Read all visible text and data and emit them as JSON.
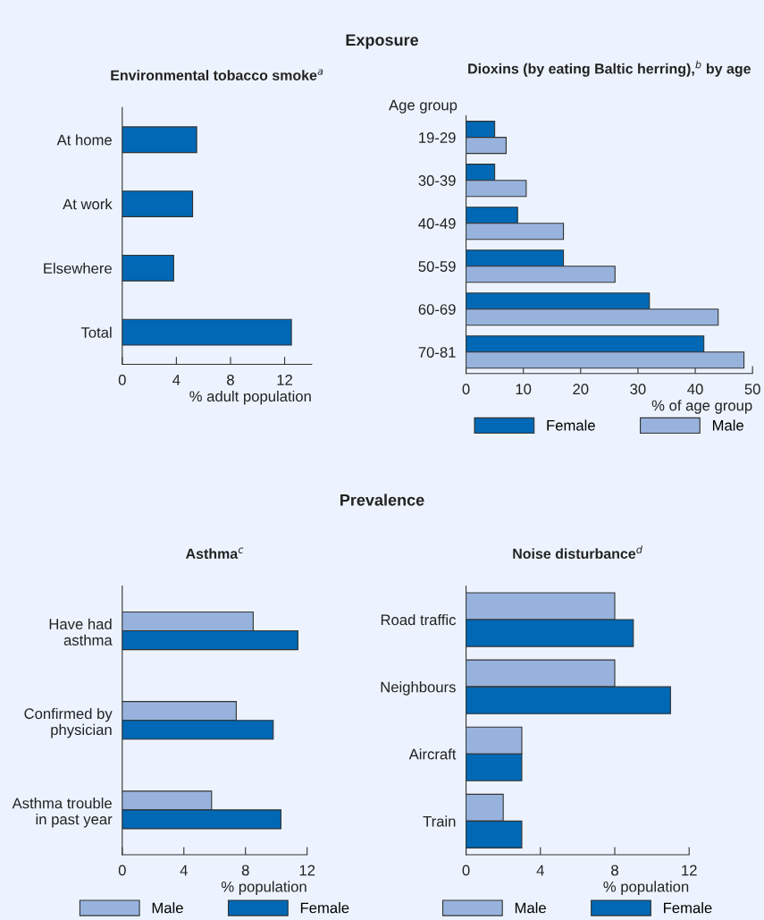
{
  "chart_data": [
    {
      "type": "bar",
      "orientation": "horizontal",
      "title": "Environmental tobacco smoke$^{a}$",
      "annotations": [
        "Exposure"
      ],
      "xlabel": "% adult population",
      "categories": [
        "At home",
        "At work",
        "Elsewhere",
        "Total"
      ],
      "values": [
        5.5,
        5.2,
        3.8,
        12.5
      ],
      "color": "#0068b4",
      "xlim": [
        0,
        14
      ],
      "xticks": [
        0,
        4,
        8,
        12
      ],
      "grid": false
    },
    {
      "type": "bar",
      "orientation": "horizontal",
      "title": "Dioxins (by eating Baltic herring),$^{b}$ by age",
      "xlabel": "% of age group",
      "ylabel": "Age group",
      "categories": [
        "19-29",
        "30-39",
        "40-49",
        "50-59",
        "60-69",
        "70-81"
      ],
      "series": [
        {
          "name": "Female",
          "color": "#0068b4",
          "values": [
            5,
            5,
            9,
            17,
            32,
            41.5
          ]
        },
        {
          "name": "Male",
          "color": "#97b3dd",
          "values": [
            7,
            10.5,
            17,
            26,
            44,
            48.5
          ]
        }
      ],
      "xlim": [
        0,
        50
      ],
      "xticks": [
        0,
        10,
        20,
        30,
        40,
        50
      ],
      "grid": false,
      "legend": "bottom"
    },
    {
      "type": "bar",
      "orientation": "horizontal",
      "title": "Asthma$^{c}$",
      "annotations": [
        "Prevalence"
      ],
      "xlabel": "% population",
      "categories": [
        "Have had\nasthma",
        "Confirmed by\nphysician",
        "Asthma trouble\nin past year"
      ],
      "series": [
        {
          "name": "Male",
          "color": "#97b3dd",
          "values": [
            8.5,
            7.4,
            5.8
          ]
        },
        {
          "name": "Female",
          "color": "#0068b4",
          "values": [
            11.4,
            9.8,
            10.3
          ]
        }
      ],
      "xlim": [
        0,
        12
      ],
      "xticks": [
        0,
        4,
        8,
        12
      ],
      "grid": false,
      "legend": "bottom"
    },
    {
      "type": "bar",
      "orientation": "horizontal",
      "title": "Noise disturbance$^{d}$",
      "xlabel": "% population",
      "categories": [
        "Road traffic",
        "Neighbours",
        "Aircraft",
        "Train"
      ],
      "series": [
        {
          "name": "Male",
          "color": "#97b3dd",
          "values": [
            8,
            8,
            3,
            2
          ]
        },
        {
          "name": "Female",
          "color": "#0068b4",
          "values": [
            9,
            11,
            3,
            3
          ]
        }
      ],
      "xlim": [
        0,
        12
      ],
      "xticks": [
        0,
        4,
        8,
        12
      ],
      "grid": false,
      "legend": "bottom"
    }
  ]
}
